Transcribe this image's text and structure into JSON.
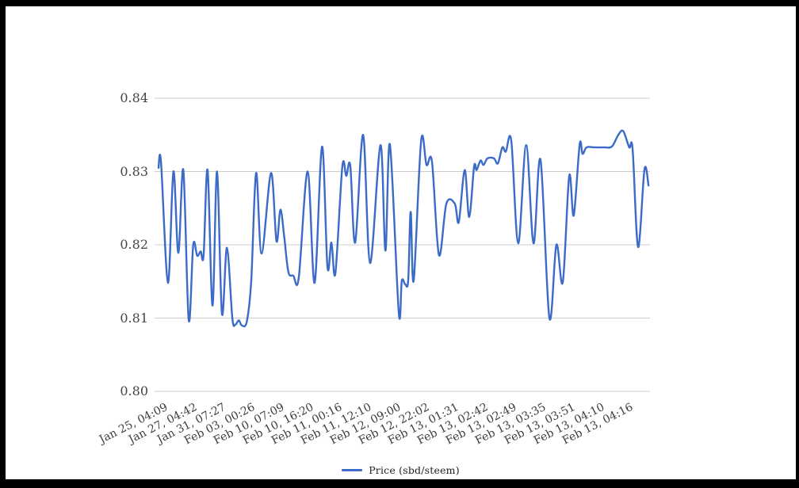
{
  "chart": {
    "colors": {
      "line": "#3b6bc7",
      "gridline": "#cccccc",
      "axis_text": "#454545",
      "legend_text": "#1f1f1f",
      "frame": "#000000",
      "background": "#ffffff"
    }
  },
  "chart_data": {
    "type": "line",
    "title": "",
    "xlabel": "",
    "ylabel": "",
    "series_name": "Price (sbd/steem)",
    "legend_position": "bottom",
    "grid": true,
    "ylim": [
      0.8,
      0.84
    ],
    "y_tick_values": [
      0.84,
      0.83,
      0.82,
      0.81,
      0.8
    ],
    "y_tick_labels": [
      "0.84",
      "0.83",
      "0.82",
      "0.81",
      "0.80"
    ],
    "x_tick_labels": [
      "Jan 25, 04:09",
      "Jan 27, 04:42",
      "Jan 31, 07:27",
      "Feb 03, 00:26",
      "Feb 10, 07:09",
      "Feb 10, 16:20",
      "Feb 11, 00:16",
      "Feb 11, 12:10",
      "Feb 12, 09:00",
      "Feb 12, 22:02",
      "Feb 13, 01:31",
      "Feb 13, 02:42",
      "Feb 13, 02:49",
      "Feb 13, 03:35",
      "Feb 13, 03:51",
      "Feb 13, 04:10",
      "Feb 13, 04:16"
    ],
    "points_note": "each point = [fraction along time axis 0-1, price sbd/steem]",
    "points": [
      [
        0.008,
        0.8305
      ],
      [
        0.013,
        0.8313
      ],
      [
        0.027,
        0.8148
      ],
      [
        0.038,
        0.83
      ],
      [
        0.048,
        0.8189
      ],
      [
        0.058,
        0.8302
      ],
      [
        0.069,
        0.8097
      ],
      [
        0.078,
        0.82
      ],
      [
        0.086,
        0.8185
      ],
      [
        0.093,
        0.8191
      ],
      [
        0.099,
        0.8186
      ],
      [
        0.107,
        0.8302
      ],
      [
        0.117,
        0.8117
      ],
      [
        0.126,
        0.83
      ],
      [
        0.136,
        0.8106
      ],
      [
        0.146,
        0.8196
      ],
      [
        0.157,
        0.81
      ],
      [
        0.163,
        0.8091
      ],
      [
        0.17,
        0.8097
      ],
      [
        0.176,
        0.809
      ],
      [
        0.186,
        0.8095
      ],
      [
        0.195,
        0.815
      ],
      [
        0.205,
        0.8298
      ],
      [
        0.216,
        0.8188
      ],
      [
        0.235,
        0.8298
      ],
      [
        0.246,
        0.8205
      ],
      [
        0.254,
        0.8248
      ],
      [
        0.262,
        0.8209
      ],
      [
        0.27,
        0.8163
      ],
      [
        0.28,
        0.8158
      ],
      [
        0.291,
        0.8155
      ],
      [
        0.309,
        0.83
      ],
      [
        0.323,
        0.8148
      ],
      [
        0.338,
        0.8334
      ],
      [
        0.349,
        0.817
      ],
      [
        0.357,
        0.8203
      ],
      [
        0.365,
        0.8161
      ],
      [
        0.379,
        0.8307
      ],
      [
        0.387,
        0.8294
      ],
      [
        0.395,
        0.8308
      ],
      [
        0.405,
        0.8203
      ],
      [
        0.421,
        0.835
      ],
      [
        0.435,
        0.8175
      ],
      [
        0.456,
        0.8336
      ],
      [
        0.466,
        0.8192
      ],
      [
        0.475,
        0.8337
      ],
      [
        0.493,
        0.8107
      ],
      [
        0.499,
        0.8151
      ],
      [
        0.506,
        0.8146
      ],
      [
        0.512,
        0.8152
      ],
      [
        0.517,
        0.8245
      ],
      [
        0.523,
        0.8151
      ],
      [
        0.538,
        0.8342
      ],
      [
        0.549,
        0.8309
      ],
      [
        0.56,
        0.8313
      ],
      [
        0.574,
        0.8186
      ],
      [
        0.589,
        0.8256
      ],
      [
        0.606,
        0.8256
      ],
      [
        0.614,
        0.8231
      ],
      [
        0.626,
        0.8302
      ],
      [
        0.635,
        0.8238
      ],
      [
        0.645,
        0.8307
      ],
      [
        0.65,
        0.8302
      ],
      [
        0.658,
        0.8315
      ],
      [
        0.664,
        0.8309
      ],
      [
        0.672,
        0.8318
      ],
      [
        0.685,
        0.8318
      ],
      [
        0.693,
        0.8311
      ],
      [
        0.702,
        0.8333
      ],
      [
        0.709,
        0.8327
      ],
      [
        0.72,
        0.8342
      ],
      [
        0.734,
        0.8202
      ],
      [
        0.75,
        0.8336
      ],
      [
        0.765,
        0.8202
      ],
      [
        0.779,
        0.8316
      ],
      [
        0.797,
        0.81
      ],
      [
        0.811,
        0.82
      ],
      [
        0.824,
        0.8149
      ],
      [
        0.837,
        0.8294
      ],
      [
        0.846,
        0.824
      ],
      [
        0.858,
        0.8337
      ],
      [
        0.864,
        0.8324
      ],
      [
        0.872,
        0.8333
      ],
      [
        0.888,
        0.8333
      ],
      [
        0.907,
        0.8333
      ],
      [
        0.923,
        0.8334
      ],
      [
        0.936,
        0.835
      ],
      [
        0.946,
        0.8355
      ],
      [
        0.958,
        0.8333
      ],
      [
        0.965,
        0.833
      ],
      [
        0.976,
        0.8197
      ],
      [
        0.989,
        0.8303
      ],
      [
        0.997,
        0.8281
      ]
    ]
  }
}
